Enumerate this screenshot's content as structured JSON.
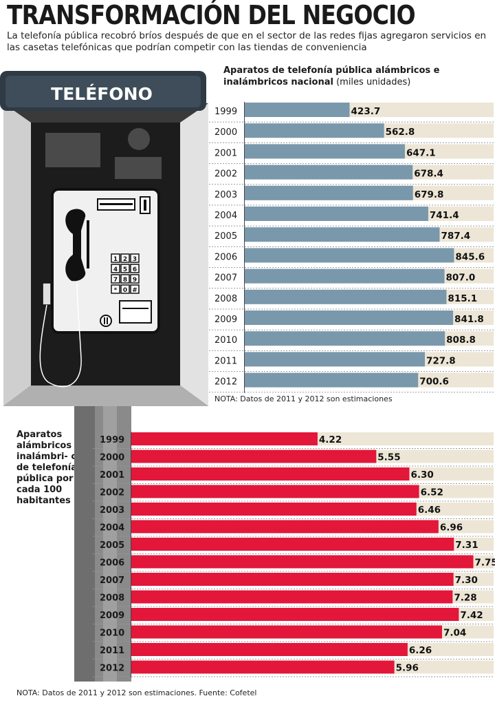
{
  "header": {
    "title": "TRANSFORMACIÓN DEL NEGOCIO",
    "subtitle": "La telefonía pública recobró bríos después de que en el sector de las redes fijas agregaron servicios en las casetas telefónicas que podrían competir con las tiendas de conveniencia"
  },
  "illustration": {
    "sign_text": "TELÉFONO",
    "keypad_keys": [
      "1",
      "2",
      "3",
      "4",
      "5",
      "6",
      "7",
      "8",
      "9",
      "*",
      "0",
      "#"
    ]
  },
  "colors": {
    "bar_blue": "#7a98ac",
    "bar_red": "#e2173a",
    "track": "#ede6d6",
    "booth_dark": "#3a3a3a"
  },
  "chart_data": [
    {
      "type": "bar",
      "orientation": "horizontal",
      "title_bold": "Aparatos de telefonía pública alámbricos e inalámbricos nacional",
      "title_rest": "(miles unidades)",
      "categories": [
        "1999",
        "2000",
        "2001",
        "2002",
        "2003",
        "2004",
        "2005",
        "2006",
        "2007",
        "2008",
        "2009",
        "2010",
        "2011",
        "2012"
      ],
      "values": [
        423.7,
        562.8,
        647.1,
        678.4,
        679.8,
        741.4,
        787.4,
        845.6,
        807.0,
        815.1,
        841.8,
        808.8,
        727.8,
        700.6
      ],
      "labels": [
        "423.7",
        "562.8",
        "647.1",
        "678.4",
        "679.8",
        "741.4",
        "787.4",
        "845.6",
        "807.0",
        "815.1",
        "841.8",
        "808.8",
        "727.8",
        "700.6"
      ],
      "note": "NOTA: Datos de 2011 y 2012 son estimaciones"
    },
    {
      "type": "bar",
      "orientation": "horizontal",
      "title": "Aparatos alámbricos e inalámbri- cos de telefonía pública por cada 100 habitantes",
      "categories": [
        "1999",
        "2000",
        "2001",
        "2002",
        "2003",
        "2004",
        "2005",
        "2006",
        "2007",
        "2008",
        "2009",
        "2010",
        "2011",
        "2012"
      ],
      "values": [
        4.22,
        5.55,
        6.3,
        6.52,
        6.46,
        6.96,
        7.31,
        7.75,
        7.3,
        7.28,
        7.42,
        7.04,
        6.26,
        5.96
      ],
      "labels": [
        "4.22",
        "5.55",
        "6.30",
        "6.52",
        "6.46",
        "6.96",
        "7.31",
        "7.75",
        "7.30",
        "7.28",
        "7.42",
        "7.04",
        "6.26",
        "5.96"
      ],
      "note": "NOTA: Datos de 2011 y 2012 son estimaciones. Fuente: Cofetel"
    }
  ]
}
